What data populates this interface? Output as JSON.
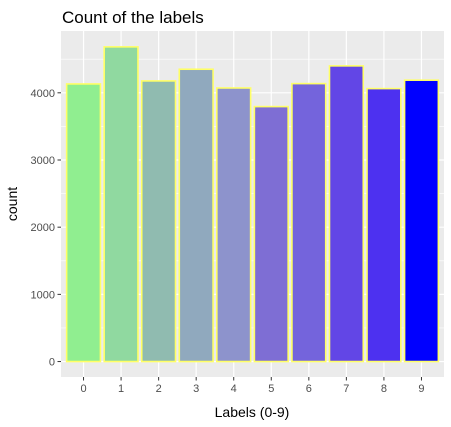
{
  "chart_data": {
    "type": "bar",
    "title": "Count of the labels",
    "xlabel": "Labels (0-9)",
    "ylabel": "count",
    "categories": [
      "0",
      "1",
      "2",
      "3",
      "4",
      "5",
      "6",
      "7",
      "8",
      "9"
    ],
    "values": [
      4132,
      4684,
      4177,
      4351,
      4072,
      3795,
      4137,
      4401,
      4063,
      4188
    ],
    "ylim": [
      -230,
      4920
    ],
    "yticks": [
      0,
      1000,
      2000,
      3000,
      4000
    ],
    "ytick_labels": [
      "0",
      "1000",
      "2000",
      "3000",
      "4000"
    ],
    "grid": true,
    "bar_colors": [
      "#90EE90",
      "#90D9A0",
      "#90BBB0",
      "#90A9BE",
      "#8D93CC",
      "#7E6ED4",
      "#7464DC",
      "#6246E6",
      "#4D31F0",
      "#0000FF"
    ],
    "bar_outline_color": "#FFFF66",
    "panel_background": "#EBEBEB",
    "grid_color": "#FFFFFF"
  }
}
